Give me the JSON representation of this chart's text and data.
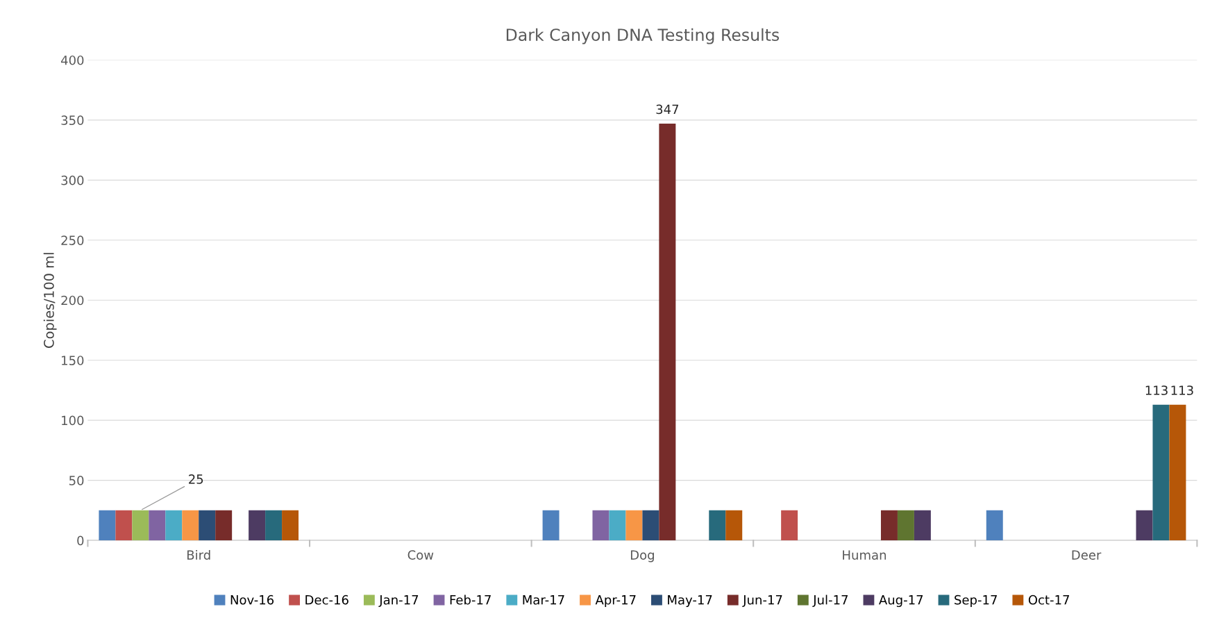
{
  "chart_data": {
    "type": "bar",
    "title": "Dark Canyon DNA Testing Results",
    "ylabel": "Copies/100 ml",
    "categories": [
      "Bird",
      "Cow",
      "Dog",
      "Human",
      "Deer"
    ],
    "series": [
      {
        "name": "Nov-16",
        "color": "#4f81bd",
        "values": [
          25,
          null,
          25,
          null,
          25
        ]
      },
      {
        "name": "Dec-16",
        "color": "#c0504d",
        "values": [
          25,
          null,
          null,
          25,
          null
        ]
      },
      {
        "name": "Jan-17",
        "color": "#9bbb59",
        "values": [
          25,
          null,
          null,
          null,
          null
        ],
        "value_labels": [
          "25",
          null,
          null,
          null,
          null
        ]
      },
      {
        "name": "Feb-17",
        "color": "#8064a2",
        "values": [
          25,
          null,
          25,
          null,
          null
        ]
      },
      {
        "name": "Mar-17",
        "color": "#4bacc6",
        "values": [
          25,
          null,
          25,
          null,
          null
        ]
      },
      {
        "name": "Apr-17",
        "color": "#f79646",
        "values": [
          25,
          null,
          25,
          null,
          null
        ]
      },
      {
        "name": "May-17",
        "color": "#2c4d75",
        "values": [
          25,
          null,
          25,
          null,
          null
        ]
      },
      {
        "name": "Jun-17",
        "color": "#772c2a",
        "values": [
          25,
          null,
          347,
          25,
          null
        ],
        "value_labels": [
          null,
          null,
          "347",
          null,
          null
        ]
      },
      {
        "name": "Jul-17",
        "color": "#5f7530",
        "values": [
          null,
          null,
          null,
          25,
          null
        ]
      },
      {
        "name": "Aug-17",
        "color": "#4d3b62",
        "values": [
          25,
          null,
          null,
          25,
          25
        ]
      },
      {
        "name": "Sep-17",
        "color": "#276a7c",
        "values": [
          25,
          null,
          25,
          null,
          113
        ],
        "value_labels": [
          null,
          null,
          null,
          null,
          "113"
        ]
      },
      {
        "name": "Oct-17",
        "color": "#b65708",
        "values": [
          25,
          null,
          25,
          null,
          113
        ],
        "value_labels": [
          null,
          null,
          null,
          null,
          "113"
        ]
      }
    ],
    "ylim": [
      0,
      400
    ],
    "yticks": [
      0,
      50,
      100,
      150,
      200,
      250,
      300,
      350,
      400
    ],
    "grid": "y",
    "legend": "bottom"
  }
}
